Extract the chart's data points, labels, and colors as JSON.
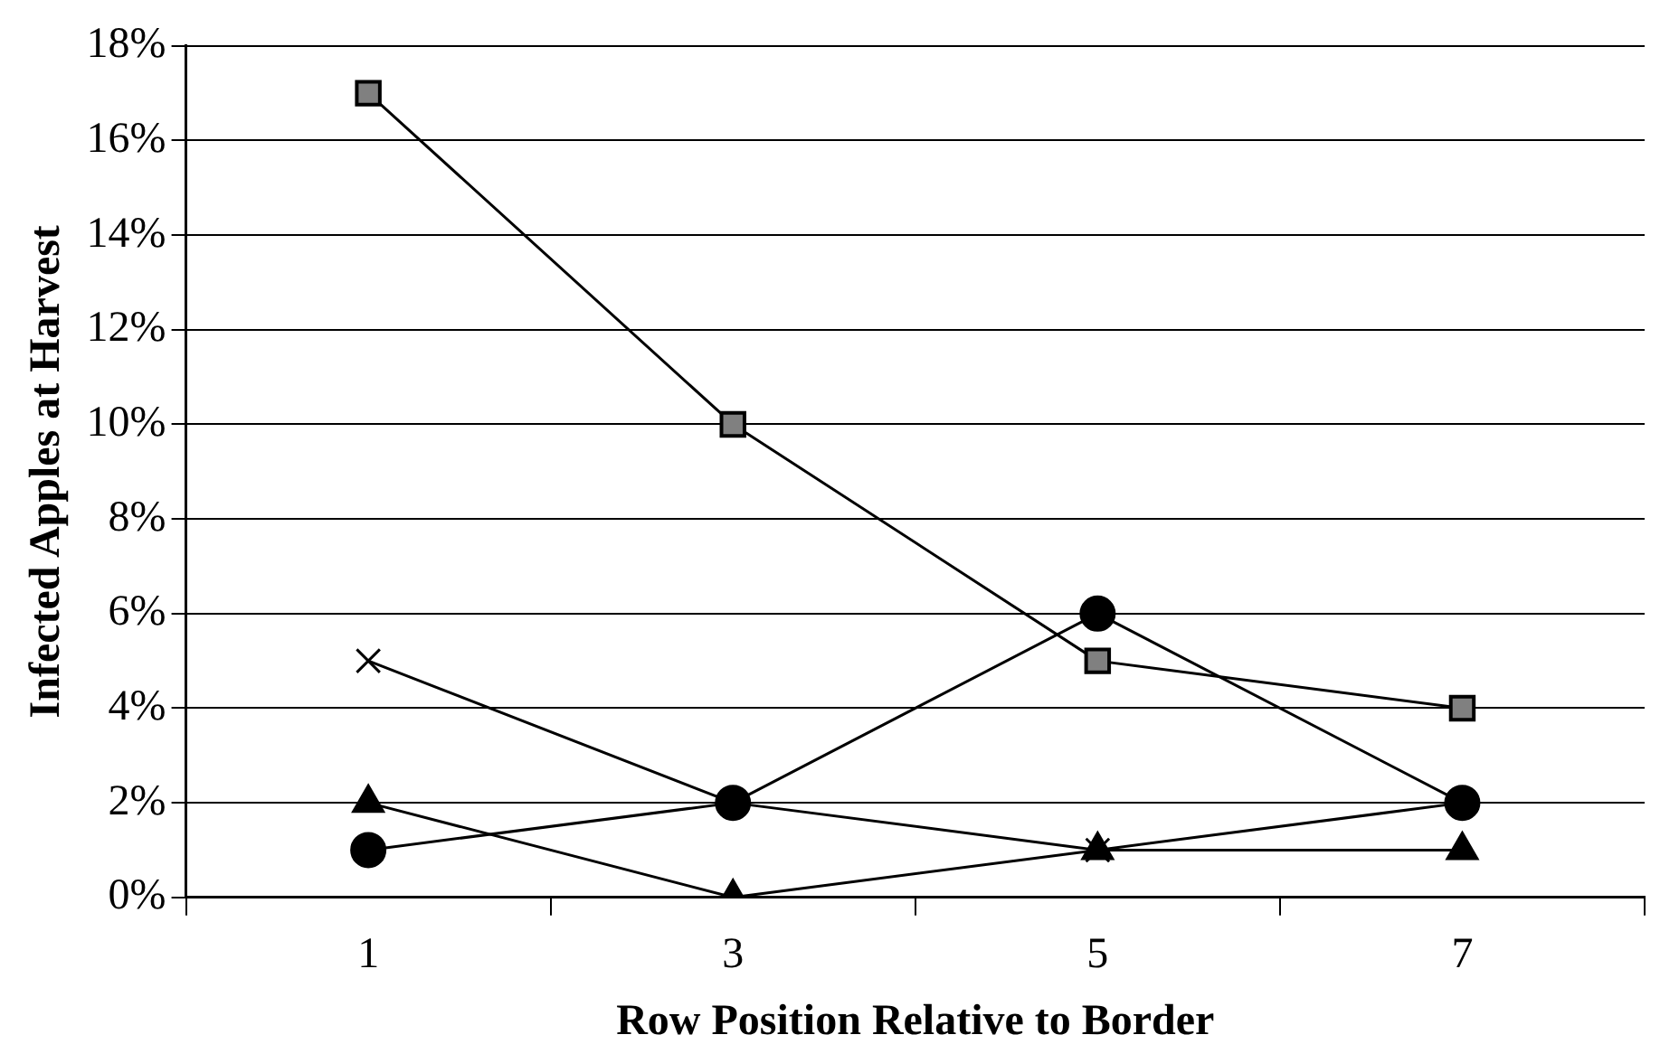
{
  "chart_data": {
    "type": "line",
    "xlabel": "Row Position Relative to Border",
    "ylabel": "Infected Apples at Harvest",
    "categories": [
      "1",
      "3",
      "5",
      "7"
    ],
    "series": [
      {
        "color": "#000000",
        "marker": "square",
        "values": [
          17,
          10,
          5,
          4
        ]
      },
      {
        "color": "#000000",
        "marker": "cross",
        "values": [
          5,
          2,
          1,
          2
        ]
      },
      {
        "color": "#000000",
        "marker": "circle",
        "values": [
          1,
          2,
          6,
          2
        ]
      },
      {
        "color": "#000000",
        "marker": "triangle",
        "values": [
          2,
          0,
          1,
          1
        ]
      }
    ],
    "ylim": [
      0,
      18
    ],
    "yticks": [
      {
        "value": 0,
        "label": "0%"
      },
      {
        "value": 2,
        "label": "2%"
      },
      {
        "value": 4,
        "label": "4%"
      },
      {
        "value": 6,
        "label": "6%"
      },
      {
        "value": 8,
        "label": "8%"
      },
      {
        "value": 10,
        "label": "10%"
      },
      {
        "value": 12,
        "label": "12%"
      },
      {
        "value": 14,
        "label": "14%"
      },
      {
        "value": 16,
        "label": "16%"
      },
      {
        "value": 18,
        "label": "18%"
      }
    ],
    "grid": "y",
    "legend": false,
    "line_style": "solid"
  }
}
